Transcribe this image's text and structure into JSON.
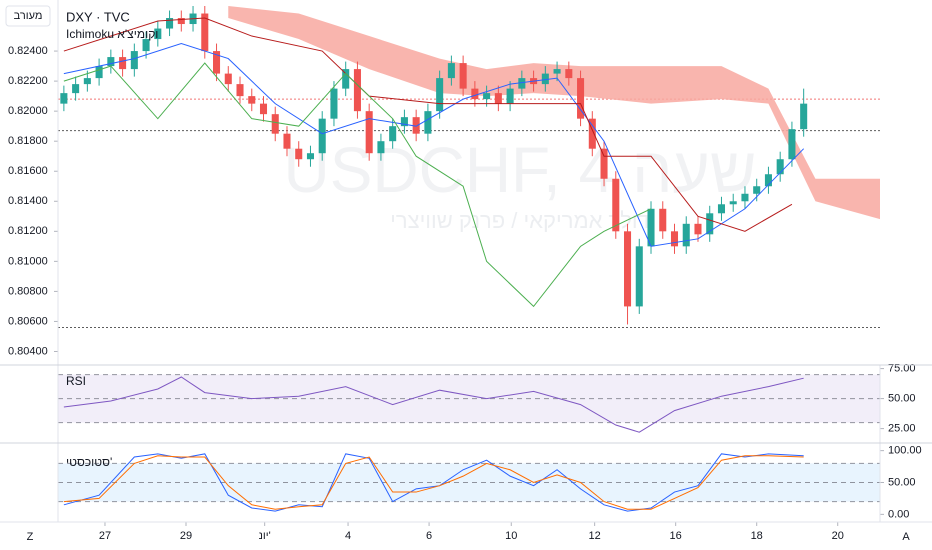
{
  "ui": {
    "mode_button": "מעורב",
    "corner_left": "Z",
    "corner_right": "A",
    "watermark": "USDCHF, 4 שעה",
    "watermark_sub": "דולר אמריקאי / פרנק שוויצרי"
  },
  "chart_data": [
    {
      "type": "candlestick",
      "title": "DXY · TVC",
      "subtitle": "Ichimoku וקומיצ'א",
      "up_color": "#26a69a",
      "down_color": "#ef5350",
      "open": [
        0.8205,
        0.8212,
        0.8218,
        0.8222,
        0.823,
        0.8236,
        0.8228,
        0.824,
        0.8248,
        0.8255,
        0.8262,
        0.8258,
        0.8265,
        0.824,
        0.8225,
        0.8218,
        0.821,
        0.8205,
        0.8198,
        0.8185,
        0.8175,
        0.8168,
        0.8172,
        0.8195,
        0.8215,
        0.8228,
        0.82,
        0.8172,
        0.818,
        0.819,
        0.8196,
        0.8185,
        0.82,
        0.8222,
        0.8232,
        0.8215,
        0.8208,
        0.8212,
        0.8205,
        0.8215,
        0.8222,
        0.8218,
        0.8225,
        0.8228,
        0.8222,
        0.8195,
        0.8175,
        0.8155,
        0.812,
        0.807,
        0.811,
        0.8135,
        0.812,
        0.811,
        0.8125,
        0.8118,
        0.8132,
        0.8138,
        0.814,
        0.8145,
        0.815,
        0.8158,
        0.8168,
        0.8188
      ],
      "high": [
        0.8217,
        0.8223,
        0.8227,
        0.8235,
        0.8241,
        0.8241,
        0.8245,
        0.8253,
        0.826,
        0.8267,
        0.8267,
        0.827,
        0.827,
        0.8245,
        0.823,
        0.8223,
        0.8215,
        0.821,
        0.8203,
        0.819,
        0.818,
        0.8177,
        0.82,
        0.822,
        0.8233,
        0.8233,
        0.8205,
        0.8185,
        0.8195,
        0.8201,
        0.8201,
        0.8205,
        0.8227,
        0.8237,
        0.8237,
        0.822,
        0.8217,
        0.8217,
        0.822,
        0.8227,
        0.8227,
        0.823,
        0.8233,
        0.8233,
        0.8227,
        0.82,
        0.818,
        0.816,
        0.8125,
        0.8115,
        0.814,
        0.814,
        0.8125,
        0.813,
        0.813,
        0.8137,
        0.8143,
        0.8145,
        0.815,
        0.8155,
        0.8163,
        0.8173,
        0.8193,
        0.8215
      ],
      "low": [
        0.82,
        0.8207,
        0.8213,
        0.8217,
        0.8225,
        0.8223,
        0.8223,
        0.8235,
        0.8243,
        0.825,
        0.8253,
        0.8253,
        0.8235,
        0.822,
        0.8213,
        0.8205,
        0.82,
        0.8193,
        0.818,
        0.817,
        0.8163,
        0.8163,
        0.8167,
        0.819,
        0.821,
        0.8195,
        0.8167,
        0.8167,
        0.8175,
        0.8185,
        0.818,
        0.818,
        0.8195,
        0.8217,
        0.821,
        0.8203,
        0.8203,
        0.82,
        0.82,
        0.821,
        0.8213,
        0.8213,
        0.822,
        0.8217,
        0.819,
        0.817,
        0.815,
        0.8115,
        0.8058,
        0.8065,
        0.8105,
        0.8115,
        0.8105,
        0.8105,
        0.8113,
        0.8113,
        0.8127,
        0.8133,
        0.8135,
        0.814,
        0.8145,
        0.8153,
        0.8163,
        0.8183
      ],
      "close": [
        0.8212,
        0.8218,
        0.8222,
        0.823,
        0.8236,
        0.8228,
        0.824,
        0.8248,
        0.8255,
        0.8262,
        0.8258,
        0.8265,
        0.824,
        0.8225,
        0.8218,
        0.821,
        0.8205,
        0.8198,
        0.8185,
        0.8175,
        0.8168,
        0.8172,
        0.8195,
        0.8215,
        0.8228,
        0.82,
        0.8172,
        0.818,
        0.819,
        0.8196,
        0.8185,
        0.82,
        0.8222,
        0.8232,
        0.8215,
        0.8208,
        0.8212,
        0.8205,
        0.8215,
        0.8222,
        0.8218,
        0.8225,
        0.8228,
        0.8222,
        0.8195,
        0.8175,
        0.8155,
        0.812,
        0.807,
        0.811,
        0.8135,
        0.812,
        0.811,
        0.8125,
        0.8118,
        0.8132,
        0.8138,
        0.814,
        0.8145,
        0.815,
        0.8158,
        0.8168,
        0.8188,
        0.8205
      ],
      "cloud": {
        "color": "#f8a8a0",
        "x": [
          14,
          20,
          26,
          32,
          36,
          40,
          44,
          50,
          56,
          60,
          64,
          70
        ],
        "upper": [
          0.827,
          0.8265,
          0.825,
          0.8235,
          0.8228,
          0.8232,
          0.823,
          0.823,
          0.823,
          0.8215,
          0.8155,
          0.8155
        ],
        "lower": [
          0.8262,
          0.8248,
          0.8228,
          0.8212,
          0.821,
          0.8212,
          0.821,
          0.8205,
          0.8208,
          0.8205,
          0.814,
          0.8127
        ]
      },
      "series": [
        {
          "color": "#2962ff",
          "x": [
            0,
            6,
            10,
            14,
            18,
            22,
            26,
            30,
            34,
            38,
            42,
            46,
            50,
            54,
            58,
            63
          ],
          "values": [
            0.8225,
            0.8235,
            0.8245,
            0.8235,
            0.8205,
            0.8185,
            0.8195,
            0.819,
            0.8208,
            0.8218,
            0.8222,
            0.818,
            0.811,
            0.8115,
            0.8135,
            0.8175
          ]
        },
        {
          "color": "#b71c1c",
          "x": [
            0,
            8,
            12,
            16,
            22,
            26,
            32,
            36,
            40,
            44,
            46,
            50,
            54,
            58,
            62
          ],
          "values": [
            0.824,
            0.826,
            0.8262,
            0.825,
            0.824,
            0.821,
            0.8205,
            0.8205,
            0.8205,
            0.8205,
            0.817,
            0.817,
            0.813,
            0.812,
            0.8138
          ]
        },
        {
          "color": "#4caf50",
          "x": [
            0,
            4,
            8,
            12,
            16,
            20,
            24,
            28,
            30,
            34,
            36,
            40,
            44,
            46,
            50
          ],
          "values": [
            0.822,
            0.823,
            0.8195,
            0.8232,
            0.8195,
            0.819,
            0.8225,
            0.8195,
            0.817,
            0.815,
            0.81,
            0.807,
            0.811,
            0.812,
            0.8135
          ]
        }
      ],
      "hlines": [
        {
          "value": 0.8208,
          "color": "#ef5350"
        },
        {
          "value": 0.8187,
          "color": "#333333"
        },
        {
          "value": 0.8056,
          "color": "#333333"
        }
      ],
      "xlim": [
        -0.5,
        69.5
      ],
      "ylim": [
        0.8031,
        0.8274
      ],
      "yticks": [
        {
          "value": 0.804,
          "label": "0.80400"
        },
        {
          "value": 0.806,
          "label": "0.80600"
        },
        {
          "value": 0.808,
          "label": "0.80800"
        },
        {
          "value": 0.81,
          "label": "0.81000"
        },
        {
          "value": 0.812,
          "label": "0.81200"
        },
        {
          "value": 0.814,
          "label": "0.81400"
        },
        {
          "value": 0.816,
          "label": "0.81600"
        },
        {
          "value": 0.818,
          "label": "0.81800"
        },
        {
          "value": 0.82,
          "label": "0.82000"
        },
        {
          "value": 0.822,
          "label": "0.82200"
        },
        {
          "value": 0.824,
          "label": "0.82400"
        }
      ],
      "xticks": [
        {
          "value": 3.5,
          "label": "27"
        },
        {
          "value": 10.4,
          "label": "29"
        },
        {
          "value": 17.1,
          "label": "יונ'"
        },
        {
          "value": 24.2,
          "label": "4"
        },
        {
          "value": 31.1,
          "label": "6"
        },
        {
          "value": 38.1,
          "label": "10"
        },
        {
          "value": 45.2,
          "label": "12"
        },
        {
          "value": 52.1,
          "label": "16"
        },
        {
          "value": 59,
          "label": "18"
        },
        {
          "value": 65.9,
          "label": "20"
        }
      ],
      "grid": false
    },
    {
      "type": "line",
      "title": "RSI",
      "band": [
        30,
        70
      ],
      "band_color": "#7e57c2",
      "hlines": [
        70,
        50,
        30
      ],
      "series": [
        {
          "color": "#7e57c2",
          "x": [
            0,
            4,
            8,
            10,
            12,
            16,
            20,
            24,
            28,
            32,
            36,
            40,
            44,
            47,
            49,
            52,
            56,
            60,
            63
          ],
          "values": [
            43,
            48,
            58,
            68,
            55,
            50,
            52,
            60,
            45,
            57,
            50,
            56,
            45,
            28,
            22,
            40,
            52,
            60,
            67
          ]
        }
      ],
      "xlim": [
        -0.5,
        69.5
      ],
      "ylim": [
        13,
        78
      ],
      "yticks": [
        {
          "value": 25,
          "label": "25.00"
        },
        {
          "value": 50,
          "label": "50.00"
        },
        {
          "value": 75,
          "label": "75.00"
        }
      ]
    },
    {
      "type": "line",
      "title": "סטוכסטי'",
      "band": [
        20,
        80
      ],
      "band_color": "#2196f3",
      "hlines": [
        80,
        50,
        20
      ],
      "series": [
        {
          "color": "#2962ff",
          "x": [
            0,
            3,
            6,
            8,
            10,
            12,
            14,
            16,
            18,
            20,
            22,
            24,
            26,
            28,
            30,
            32,
            34,
            36,
            38,
            40,
            42,
            44,
            46,
            48,
            50,
            52,
            54,
            56,
            58,
            60,
            63
          ],
          "values": [
            15,
            30,
            90,
            95,
            88,
            95,
            30,
            10,
            5,
            15,
            12,
            95,
            88,
            20,
            40,
            45,
            70,
            85,
            60,
            45,
            70,
            40,
            15,
            5,
            10,
            35,
            45,
            95,
            90,
            95,
            92
          ]
        },
        {
          "color": "#ff6d00",
          "x": [
            0,
            3,
            6,
            8,
            10,
            12,
            14,
            16,
            18,
            20,
            22,
            24,
            26,
            28,
            30,
            32,
            34,
            36,
            38,
            40,
            42,
            44,
            46,
            48,
            50,
            52,
            54,
            56,
            58,
            60,
            63
          ],
          "values": [
            20,
            25,
            80,
            92,
            90,
            90,
            45,
            15,
            8,
            12,
            15,
            80,
            90,
            35,
            35,
            45,
            60,
            80,
            70,
            50,
            62,
            50,
            20,
            8,
            8,
            25,
            42,
            85,
            92,
            92,
            90
          ]
        }
      ],
      "xlim": [
        -0.5,
        69.5
      ],
      "ylim": [
        -12,
        112
      ],
      "yticks": [
        {
          "value": 0,
          "label": "0.00"
        },
        {
          "value": 50,
          "label": "50.00"
        },
        {
          "value": 100,
          "label": "100.00"
        }
      ]
    }
  ]
}
